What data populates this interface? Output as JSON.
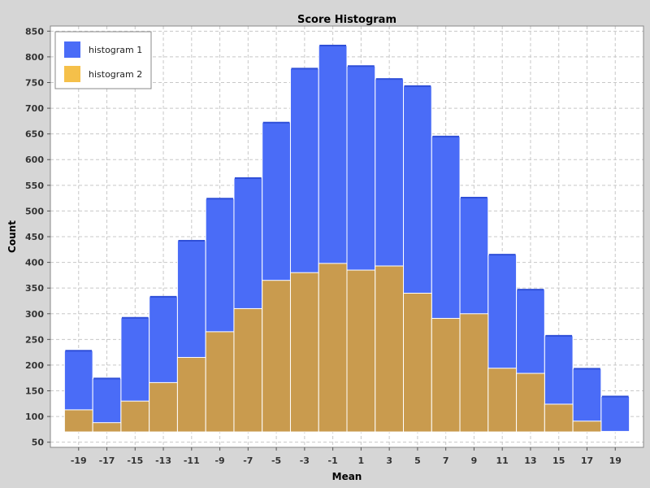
{
  "chart_data": {
    "type": "bar",
    "title": "Score Histogram",
    "xlabel": "Mean",
    "ylabel": "Count",
    "xlim": [
      -21,
      21
    ],
    "ylim": [
      40,
      860
    ],
    "x_ticks": [
      -19,
      -17,
      -15,
      -13,
      -11,
      -9,
      -7,
      -5,
      -3,
      -1,
      1,
      3,
      5,
      7,
      9,
      11,
      13,
      15,
      17,
      19
    ],
    "y_ticks": [
      50,
      100,
      150,
      200,
      250,
      300,
      350,
      400,
      450,
      500,
      550,
      600,
      650,
      700,
      750,
      800,
      850
    ],
    "grid": true,
    "legend_position": "top-left",
    "bins": [
      [
        -20,
        -18
      ],
      [
        -18,
        -16
      ],
      [
        -16,
        -14
      ],
      [
        -14,
        -12
      ],
      [
        -12,
        -10
      ],
      [
        -10,
        -8
      ],
      [
        -8,
        -6
      ],
      [
        -6,
        -4
      ],
      [
        -4,
        -2
      ],
      [
        -2,
        0
      ],
      [
        0,
        2
      ],
      [
        2,
        4
      ],
      [
        4,
        6
      ],
      [
        6,
        8
      ],
      [
        8,
        10
      ],
      [
        10,
        12
      ],
      [
        12,
        14
      ],
      [
        14,
        16
      ],
      [
        16,
        18
      ],
      [
        18,
        20
      ]
    ],
    "series": [
      {
        "name": "histogram 1",
        "color": "#4a6cf7",
        "values": [
          228,
          174,
          292,
          333,
          442,
          524,
          564,
          672,
          777,
          822,
          782,
          757,
          743,
          645,
          526,
          415,
          347,
          257,
          193,
          139
        ]
      },
      {
        "name": "histogram 2",
        "color": "#f5c04a",
        "values": [
          113,
          88,
          130,
          166,
          215,
          265,
          310,
          365,
          380,
          398,
          385,
          393,
          340,
          291,
          300,
          194,
          184,
          124,
          91,
          71
        ]
      }
    ],
    "overlap_color": "#c99b4e"
  }
}
